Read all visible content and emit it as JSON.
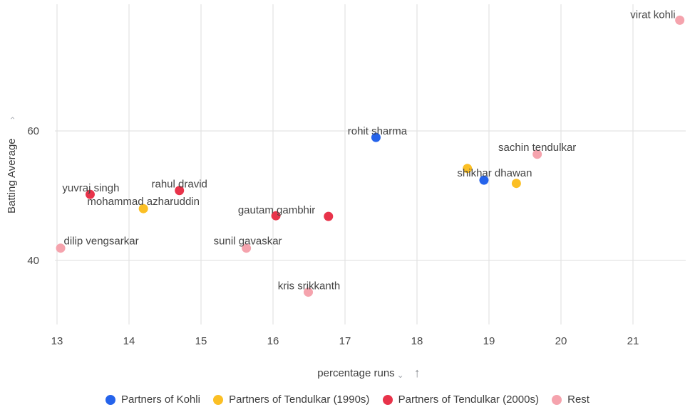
{
  "chart_data": {
    "type": "scatter",
    "title": "",
    "xlabel": "percentage runs",
    "ylabel": "Batting Average",
    "xlim": [
      13,
      21.75
    ],
    "ylim": [
      30,
      79.5
    ],
    "x_ticks": [
      13,
      14,
      15,
      16,
      17,
      18,
      19,
      20,
      21
    ],
    "y_ticks": [
      40,
      60
    ],
    "grid": true,
    "legend_position": "bottom",
    "series": [
      {
        "name": "Partners of Kohli",
        "color": "#2563eb",
        "points": [
          {
            "label": "rohit sharma",
            "x": 17.43,
            "y": 59.0
          },
          {
            "label": "shikhar dhawan",
            "x": 18.93,
            "y": 52.4
          }
        ]
      },
      {
        "name": "Partners of Tendulkar (1990s)",
        "color": "#fbbf24",
        "points": [
          {
            "label": "mohammad azharuddin",
            "x": 14.2,
            "y": 48.0
          },
          {
            "label": "",
            "x": 18.7,
            "y": 54.2
          },
          {
            "label": "",
            "x": 19.38,
            "y": 51.9
          }
        ]
      },
      {
        "name": "Partners of Tendulkar (2000s)",
        "color": "#e8334a",
        "points": [
          {
            "label": "yuvraj singh",
            "x": 13.46,
            "y": 50.2
          },
          {
            "label": "rahul dravid",
            "x": 14.7,
            "y": 50.8
          },
          {
            "label": "gautam gambhir",
            "x": 16.04,
            "y": 46.9
          },
          {
            "label": "",
            "x": 16.77,
            "y": 46.8
          }
        ]
      },
      {
        "name": "Rest",
        "color": "#f5a3ad",
        "points": [
          {
            "label": "virat kohli",
            "x": 21.65,
            "y": 77.1
          },
          {
            "label": "sachin tendulkar",
            "x": 19.67,
            "y": 56.4
          },
          {
            "label": "dilip vengsarkar",
            "x": 13.05,
            "y": 41.9
          },
          {
            "label": "sunil gavaskar",
            "x": 15.63,
            "y": 41.9
          },
          {
            "label": "kris srikkanth",
            "x": 16.49,
            "y": 35.1
          }
        ]
      }
    ]
  },
  "axis_controls": {
    "x_sort_icon": "arrow-up-icon",
    "x_menu_icon": "chevron-down-icon",
    "y_menu_icon": "chevron-right-icon"
  }
}
